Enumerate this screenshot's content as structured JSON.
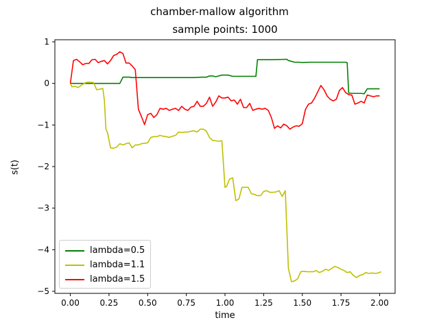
{
  "chart_data": {
    "type": "line",
    "title": "chamber-mallow algorithm",
    "subtitle": "sample points: 1000",
    "xlabel": "time",
    "ylabel": "s(t)",
    "xlim": [
      -0.1,
      2.1
    ],
    "ylim": [
      -5.05,
      1.05
    ],
    "xticks": [
      "0.00",
      "0.25",
      "0.50",
      "0.75",
      "1.00",
      "1.25",
      "1.50",
      "1.75",
      "2.00"
    ],
    "xtick_values": [
      0,
      0.25,
      0.5,
      0.75,
      1.0,
      1.25,
      1.5,
      1.75,
      2.0
    ],
    "yticks": [
      "1",
      "0",
      "−1",
      "−2",
      "−3",
      "−4",
      "−5"
    ],
    "ytick_values": [
      1,
      0,
      -1,
      -2,
      -3,
      -4,
      -5
    ],
    "grid": false,
    "legend_position": "lower-left",
    "series": [
      {
        "name": "lambda=0.5",
        "color": "#008000",
        "x": [
          0,
          0.02,
          0.05,
          0.1,
          0.15,
          0.2,
          0.25,
          0.3,
          0.32,
          0.34,
          0.36,
          0.38,
          0.4,
          0.42,
          0.5,
          0.6,
          0.7,
          0.75,
          0.8,
          0.85,
          0.88,
          0.9,
          0.92,
          0.94,
          0.96,
          0.98,
          1.0,
          1.02,
          1.05,
          1.08,
          1.1,
          1.15,
          1.2,
          1.21,
          1.25,
          1.3,
          1.4,
          1.41,
          1.45,
          1.48,
          1.5,
          1.55,
          1.6,
          1.7,
          1.78,
          1.79,
          1.8,
          1.82,
          1.85,
          1.88,
          1.9,
          1.92,
          1.95,
          2.0
        ],
        "y": [
          0.0,
          0.0,
          0.0,
          0.0,
          0.0,
          0.0,
          0.0,
          0.0,
          0.0,
          0.15,
          0.15,
          0.15,
          0.14,
          0.14,
          0.14,
          0.14,
          0.14,
          0.14,
          0.14,
          0.15,
          0.15,
          0.18,
          0.18,
          0.16,
          0.18,
          0.2,
          0.2,
          0.2,
          0.17,
          0.17,
          0.17,
          0.17,
          0.17,
          0.57,
          0.57,
          0.57,
          0.58,
          0.55,
          0.51,
          0.51,
          0.5,
          0.51,
          0.51,
          0.51,
          0.51,
          0.5,
          -0.23,
          -0.24,
          -0.24,
          -0.24,
          -0.25,
          -0.13,
          -0.13,
          -0.13
        ]
      },
      {
        "name": "lambda=1.1",
        "color": "#bfbf00",
        "x": [
          0,
          0.01,
          0.03,
          0.05,
          0.08,
          0.1,
          0.12,
          0.15,
          0.17,
          0.19,
          0.21,
          0.22,
          0.23,
          0.24,
          0.26,
          0.28,
          0.3,
          0.32,
          0.34,
          0.36,
          0.38,
          0.4,
          0.42,
          0.44,
          0.46,
          0.48,
          0.5,
          0.52,
          0.54,
          0.56,
          0.58,
          0.6,
          0.62,
          0.64,
          0.66,
          0.68,
          0.7,
          0.72,
          0.74,
          0.76,
          0.78,
          0.8,
          0.82,
          0.84,
          0.86,
          0.88,
          0.9,
          0.92,
          0.94,
          0.96,
          0.98,
          1.0,
          1.01,
          1.03,
          1.05,
          1.07,
          1.09,
          1.11,
          1.13,
          1.15,
          1.17,
          1.19,
          1.21,
          1.23,
          1.25,
          1.27,
          1.29,
          1.31,
          1.33,
          1.35,
          1.37,
          1.39,
          1.41,
          1.43,
          1.45,
          1.47,
          1.49,
          1.51,
          1.53,
          1.55,
          1.57,
          1.59,
          1.61,
          1.63,
          1.65,
          1.67,
          1.69,
          1.71,
          1.73,
          1.75,
          1.77,
          1.79,
          1.81,
          1.83,
          1.85,
          1.87,
          1.89,
          1.91,
          1.93,
          1.95,
          1.97,
          1.99,
          2.01
        ],
        "y": [
          0.0,
          -0.08,
          -0.07,
          -0.1,
          -0.02,
          0.02,
          0.03,
          0.02,
          -0.15,
          -0.14,
          -0.12,
          -0.4,
          -1.1,
          -1.18,
          -1.55,
          -1.56,
          -1.53,
          -1.45,
          -1.48,
          -1.45,
          -1.43,
          -1.55,
          -1.48,
          -1.48,
          -1.45,
          -1.44,
          -1.43,
          -1.3,
          -1.28,
          -1.28,
          -1.25,
          -1.27,
          -1.28,
          -1.3,
          -1.27,
          -1.25,
          -1.17,
          -1.18,
          -1.17,
          -1.17,
          -1.15,
          -1.14,
          -1.17,
          -1.1,
          -1.1,
          -1.15,
          -1.3,
          -1.37,
          -1.38,
          -1.39,
          -1.38,
          -2.5,
          -2.48,
          -2.3,
          -2.27,
          -2.82,
          -2.78,
          -2.5,
          -2.5,
          -2.5,
          -2.65,
          -2.67,
          -2.7,
          -2.7,
          -2.6,
          -2.58,
          -2.62,
          -2.62,
          -2.61,
          -2.58,
          -2.72,
          -2.58,
          -4.45,
          -4.77,
          -4.75,
          -4.7,
          -4.53,
          -4.52,
          -4.53,
          -4.53,
          -4.53,
          -4.5,
          -4.55,
          -4.52,
          -4.47,
          -4.5,
          -4.45,
          -4.4,
          -4.43,
          -4.47,
          -4.5,
          -4.55,
          -4.53,
          -4.62,
          -4.67,
          -4.62,
          -4.6,
          -4.55,
          -4.57,
          -4.56,
          -4.57,
          -4.56,
          -4.53
        ]
      },
      {
        "name": "lambda=1.5",
        "color": "#ff0000",
        "x": [
          0,
          0.02,
          0.04,
          0.06,
          0.08,
          0.1,
          0.12,
          0.14,
          0.16,
          0.18,
          0.2,
          0.22,
          0.24,
          0.26,
          0.28,
          0.3,
          0.32,
          0.34,
          0.36,
          0.38,
          0.4,
          0.42,
          0.44,
          0.46,
          0.48,
          0.5,
          0.52,
          0.54,
          0.56,
          0.58,
          0.6,
          0.62,
          0.64,
          0.66,
          0.68,
          0.7,
          0.72,
          0.74,
          0.76,
          0.78,
          0.8,
          0.82,
          0.84,
          0.86,
          0.88,
          0.9,
          0.92,
          0.94,
          0.96,
          0.98,
          1.0,
          1.02,
          1.04,
          1.06,
          1.08,
          1.1,
          1.12,
          1.14,
          1.16,
          1.18,
          1.2,
          1.22,
          1.24,
          1.26,
          1.28,
          1.3,
          1.32,
          1.34,
          1.36,
          1.38,
          1.4,
          1.42,
          1.44,
          1.46,
          1.48,
          1.5,
          1.52,
          1.54,
          1.56,
          1.58,
          1.6,
          1.62,
          1.64,
          1.66,
          1.68,
          1.7,
          1.72,
          1.74,
          1.76,
          1.78,
          1.8,
          1.82,
          1.84,
          1.86,
          1.88,
          1.9,
          1.92,
          1.94,
          1.96,
          1.98,
          2.0
        ],
        "y": [
          0.0,
          0.55,
          0.58,
          0.52,
          0.45,
          0.48,
          0.48,
          0.57,
          0.58,
          0.5,
          0.53,
          0.55,
          0.47,
          0.55,
          0.67,
          0.7,
          0.76,
          0.72,
          0.49,
          0.49,
          0.42,
          0.33,
          -0.62,
          -0.8,
          -0.99,
          -0.75,
          -0.72,
          -0.82,
          -0.75,
          -0.6,
          -0.62,
          -0.6,
          -0.65,
          -0.62,
          -0.6,
          -0.65,
          -0.55,
          -0.62,
          -0.65,
          -0.57,
          -0.55,
          -0.43,
          -0.55,
          -0.55,
          -0.48,
          -0.33,
          -0.55,
          -0.45,
          -0.3,
          -0.35,
          -0.35,
          -0.33,
          -0.42,
          -0.4,
          -0.5,
          -0.38,
          -0.58,
          -0.58,
          -0.48,
          -0.65,
          -0.62,
          -0.6,
          -0.62,
          -0.6,
          -0.65,
          -0.82,
          -1.08,
          -1.02,
          -1.07,
          -0.98,
          -1.02,
          -1.1,
          -1.05,
          -1.02,
          -1.03,
          -0.97,
          -0.63,
          -0.5,
          -0.47,
          -0.35,
          -0.2,
          -0.05,
          -0.15,
          -0.3,
          -0.38,
          -0.42,
          -0.38,
          -0.17,
          -0.1,
          -0.22,
          -0.27,
          -0.28,
          -0.5,
          -0.47,
          -0.43,
          -0.47,
          -0.28,
          -0.3,
          -0.32,
          -0.3,
          -0.3
        ]
      }
    ]
  }
}
